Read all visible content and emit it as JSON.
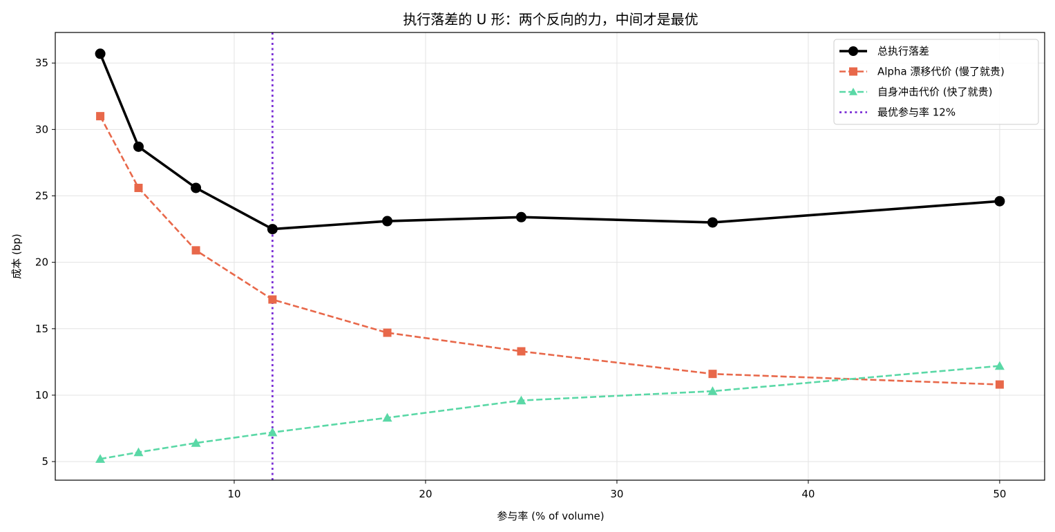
{
  "chart_data": {
    "type": "line",
    "title": "执行落差的 U 形：两个反向的力，中间才是最优",
    "xlabel": "参与率 (% of volume)",
    "ylabel": "成本 (bp)",
    "xlim": [
      0.65,
      52.35
    ],
    "ylim": [
      3.6,
      37.3
    ],
    "xticks": [
      10,
      20,
      30,
      40,
      50
    ],
    "yticks": [
      5,
      10,
      15,
      20,
      25,
      30,
      35
    ],
    "grid": true,
    "legend_position": "top-right",
    "x": [
      3,
      5,
      8,
      12,
      18,
      25,
      35,
      50
    ],
    "series": [
      {
        "name": "总执行落差",
        "color": "#000000",
        "style": "solid",
        "marker": "circle",
        "values": [
          35.7,
          28.7,
          25.6,
          22.5,
          23.1,
          23.4,
          23.0,
          24.6
        ]
      },
      {
        "name": "Alpha 漂移代价 (慢了就贵)",
        "color": "#e8684a",
        "style": "dashed",
        "marker": "square",
        "values": [
          31.0,
          25.6,
          20.9,
          17.2,
          14.7,
          13.3,
          11.6,
          10.8
        ]
      },
      {
        "name": "自身冲击代价 (快了就贵)",
        "color": "#5ad8a6",
        "style": "dashed",
        "marker": "triangle",
        "values": [
          5.2,
          5.7,
          6.4,
          7.2,
          8.3,
          9.6,
          10.3,
          12.2
        ]
      }
    ],
    "vline": {
      "name": "最优参与率 12%",
      "x": 12,
      "color": "#7b2fd6",
      "style": "dotted"
    }
  }
}
